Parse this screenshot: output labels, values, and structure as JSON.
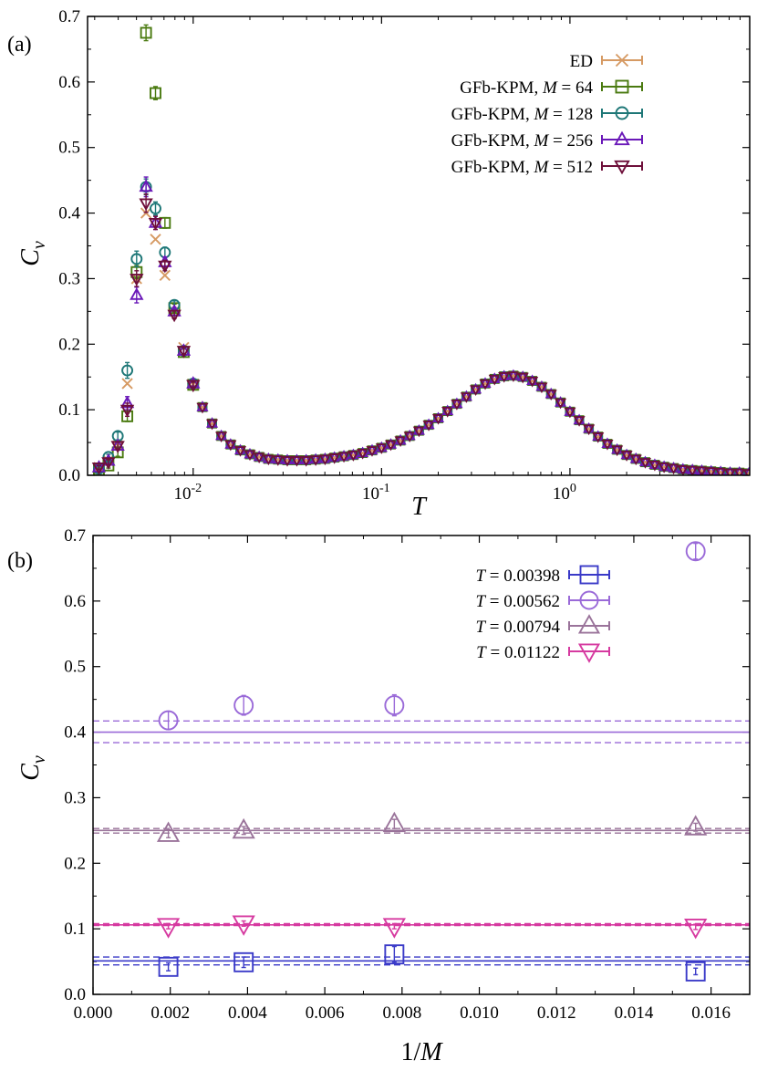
{
  "chart_data": [
    {
      "panel_label": "(a)",
      "type": "scatter",
      "x_scale": "log",
      "xlim": [
        0.00275,
        9.0
      ],
      "ylim": [
        0,
        0.7
      ],
      "xlabel": "T",
      "ylabel": "C_v",
      "y_ticks": [
        {
          "value": 0.0,
          "label": "0.0"
        },
        {
          "value": 0.1,
          "label": "0.1"
        },
        {
          "value": 0.2,
          "label": "0.2"
        },
        {
          "value": 0.3,
          "label": "0.3"
        },
        {
          "value": 0.4,
          "label": "0.4"
        },
        {
          "value": 0.5,
          "label": "0.5"
        },
        {
          "value": 0.6,
          "label": "0.6"
        },
        {
          "value": 0.7,
          "label": "0.7"
        }
      ],
      "x_ticks": [
        {
          "value": 0.01,
          "base": "10",
          "exp": "-2"
        },
        {
          "value": 0.1,
          "base": "10",
          "exp": "-1"
        },
        {
          "value": 1.0,
          "base": "10",
          "exp": "0"
        }
      ],
      "legend_position": "top-right",
      "series": [
        {
          "name": "ED",
          "marker": "x",
          "color": "#d69a63",
          "x": [
            0.00316,
            0.00355,
            0.00398,
            0.00447,
            0.00501,
            0.00562,
            0.00631,
            0.00708,
            0.00794,
            0.00891,
            0.01
          ],
          "y": [
            0.012,
            0.022,
            0.045,
            0.14,
            0.3,
            0.4,
            0.36,
            0.305,
            0.25,
            0.195,
            0.138
          ]
        },
        {
          "name": "GFb-KPM, M = 64",
          "marker": "square",
          "color": "#4a7a10",
          "x": [
            0.00316,
            0.00355,
            0.00398,
            0.00447,
            0.00501,
            0.00562,
            0.00631,
            0.00708,
            0.00794,
            0.00891,
            0.01
          ],
          "y": [
            0.008,
            0.015,
            0.035,
            0.09,
            0.31,
            0.675,
            0.583,
            0.385,
            0.255,
            0.188,
            0.138
          ],
          "err": [
            0.003,
            0.004,
            0.006,
            0.008,
            0.01,
            0.012,
            0.01,
            0.008,
            0.006,
            0.005,
            0.004
          ]
        },
        {
          "name": "GFb-KPM, M = 128",
          "marker": "circle",
          "color": "#1e7777",
          "x": [
            0.00316,
            0.00355,
            0.00398,
            0.00447,
            0.00501,
            0.00562,
            0.00631,
            0.00708,
            0.00794,
            0.00891,
            0.01
          ],
          "y": [
            0.01,
            0.028,
            0.06,
            0.16,
            0.33,
            0.44,
            0.407,
            0.34,
            0.26,
            0.19,
            0.14
          ],
          "err": [
            0.003,
            0.004,
            0.006,
            0.012,
            0.012,
            0.012,
            0.01,
            0.008,
            0.006,
            0.005,
            0.004
          ]
        },
        {
          "name": "GFb-KPM, M = 256",
          "marker": "triangle-up",
          "color": "#6a18b8",
          "x": [
            0.00316,
            0.00355,
            0.00398,
            0.00447,
            0.00501,
            0.00562,
            0.00631,
            0.00708,
            0.00794,
            0.00891,
            0.01
          ],
          "y": [
            0.012,
            0.022,
            0.045,
            0.11,
            0.275,
            0.44,
            0.385,
            0.325,
            0.25,
            0.19,
            0.14
          ],
          "err": [
            0.003,
            0.004,
            0.006,
            0.01,
            0.012,
            0.015,
            0.01,
            0.008,
            0.006,
            0.005,
            0.004
          ]
        },
        {
          "name": "GFb-KPM, M = 512",
          "marker": "triangle-down",
          "color": "#6e0f3a",
          "x": [
            0.00316,
            0.00355,
            0.00398,
            0.00447,
            0.00501,
            0.00562,
            0.00631,
            0.00708,
            0.00794,
            0.00891,
            0.01
          ],
          "y": [
            0.012,
            0.02,
            0.045,
            0.1,
            0.3,
            0.415,
            0.385,
            0.32,
            0.245,
            0.19,
            0.138
          ],
          "err": [
            0.003,
            0.004,
            0.006,
            0.01,
            0.012,
            0.014,
            0.01,
            0.008,
            0.006,
            0.005,
            0.004
          ]
        }
      ],
      "shared_curve": {
        "x": [
          0.0112,
          0.0126,
          0.0141,
          0.0158,
          0.0178,
          0.02,
          0.0224,
          0.0251,
          0.0282,
          0.0316,
          0.0355,
          0.0398,
          0.0447,
          0.0501,
          0.0562,
          0.0631,
          0.0708,
          0.0794,
          0.0891,
          0.1,
          0.112,
          0.126,
          0.141,
          0.158,
          0.178,
          0.2,
          0.224,
          0.251,
          0.282,
          0.316,
          0.355,
          0.398,
          0.447,
          0.501,
          0.562,
          0.631,
          0.708,
          0.794,
          0.891,
          1.0,
          1.12,
          1.26,
          1.41,
          1.58,
          1.78,
          2.0,
          2.24,
          2.51,
          2.82,
          3.16,
          3.55,
          3.98,
          4.47,
          5.01,
          5.62,
          6.31,
          7.08,
          7.94,
          8.91
        ],
        "y": [
          0.104,
          0.079,
          0.06,
          0.047,
          0.038,
          0.032,
          0.028,
          0.025,
          0.024,
          0.023,
          0.023,
          0.023,
          0.024,
          0.025,
          0.027,
          0.029,
          0.031,
          0.034,
          0.038,
          0.042,
          0.047,
          0.053,
          0.06,
          0.068,
          0.077,
          0.087,
          0.098,
          0.109,
          0.12,
          0.131,
          0.14,
          0.147,
          0.151,
          0.152,
          0.15,
          0.144,
          0.135,
          0.124,
          0.111,
          0.097,
          0.084,
          0.071,
          0.059,
          0.048,
          0.039,
          0.031,
          0.025,
          0.02,
          0.016,
          0.013,
          0.011,
          0.009,
          0.008,
          0.007,
          0.006,
          0.005,
          0.004,
          0.004,
          0.003
        ]
      }
    },
    {
      "panel_label": "(b)",
      "type": "scatter",
      "xlim": [
        0,
        0.017
      ],
      "ylim": [
        0,
        0.7
      ],
      "xlabel": "1/M",
      "ylabel": "C_v",
      "x_ticks": [
        {
          "value": 0.0,
          "label": "0.000"
        },
        {
          "value": 0.002,
          "label": "0.002"
        },
        {
          "value": 0.004,
          "label": "0.004"
        },
        {
          "value": 0.006,
          "label": "0.006"
        },
        {
          "value": 0.008,
          "label": "0.008"
        },
        {
          "value": 0.01,
          "label": "0.010"
        },
        {
          "value": 0.012,
          "label": "0.012"
        },
        {
          "value": 0.014,
          "label": "0.014"
        },
        {
          "value": 0.016,
          "label": "0.016"
        }
      ],
      "y_ticks": [
        {
          "value": 0.0,
          "label": "0.0"
        },
        {
          "value": 0.1,
          "label": "0.1"
        },
        {
          "value": 0.2,
          "label": "0.2"
        },
        {
          "value": 0.3,
          "label": "0.3"
        },
        {
          "value": 0.4,
          "label": "0.4"
        },
        {
          "value": 0.5,
          "label": "0.5"
        },
        {
          "value": 0.6,
          "label": "0.6"
        },
        {
          "value": 0.7,
          "label": "0.7"
        }
      ],
      "legend_position": "top-right",
      "series": [
        {
          "name": "T = 0.00398",
          "marker": "square",
          "color": "#3a3ac8",
          "x": [
            0.00195,
            0.0039,
            0.0078,
            0.0156
          ],
          "y": [
            0.042,
            0.049,
            0.061,
            0.035
          ],
          "err": [
            0.006,
            0.008,
            0.012,
            0.005
          ],
          "ref": {
            "value": 0.051,
            "band": [
              0.045,
              0.057
            ]
          }
        },
        {
          "name": "T = 0.00562",
          "marker": "circle",
          "color": "#9a6ad8",
          "x": [
            0.00195,
            0.0039,
            0.0078,
            0.0156
          ],
          "y": [
            0.418,
            0.441,
            0.441,
            0.676
          ],
          "err": [
            0.014,
            0.015,
            0.016,
            0.012
          ],
          "ref": {
            "value": 0.4,
            "band": [
              0.384,
              0.417
            ]
          }
        },
        {
          "name": "T = 0.00794",
          "marker": "triangle-up",
          "color": "#9a739a",
          "x": [
            0.00195,
            0.0039,
            0.0078,
            0.0156
          ],
          "y": [
            0.245,
            0.25,
            0.26,
            0.255
          ],
          "err": [
            0.006,
            0.006,
            0.007,
            0.006
          ],
          "ref": {
            "value": 0.25,
            "band": [
              0.246,
              0.253
            ]
          }
        },
        {
          "name": "T = 0.01122",
          "marker": "triangle-down",
          "color": "#d63aa0",
          "x": [
            0.00195,
            0.0039,
            0.0078,
            0.0156
          ],
          "y": [
            0.104,
            0.108,
            0.104,
            0.103
          ],
          "err": [
            0.004,
            0.004,
            0.004,
            0.004
          ],
          "ref": {
            "value": 0.106,
            "band": [
              0.105,
              0.108
            ]
          }
        }
      ]
    }
  ]
}
